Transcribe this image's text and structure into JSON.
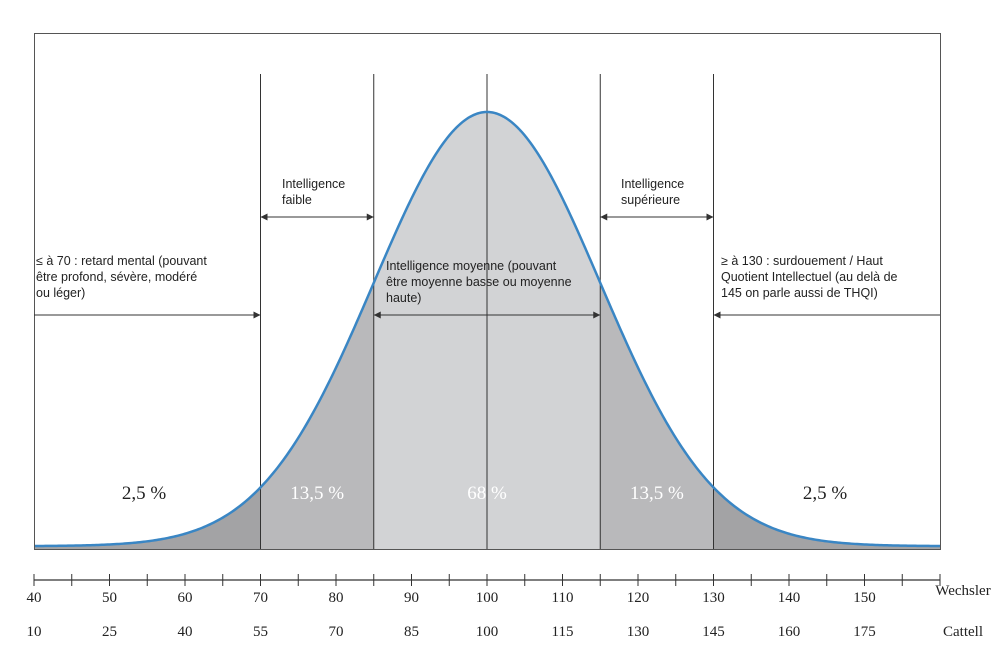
{
  "chart_data": {
    "type": "area",
    "title": "",
    "distribution": "normal",
    "mean": 100,
    "sd": 15,
    "x_range": [
      40,
      160
    ],
    "scales": [
      {
        "name": "Wechsler",
        "ticks": [
          "40",
          "50",
          "60",
          "70",
          "80",
          "90",
          "100",
          "110",
          "120",
          "130",
          "140",
          "150"
        ]
      },
      {
        "name": "Cattell",
        "ticks": [
          "10",
          "25",
          "40",
          "55",
          "70",
          "85",
          "100",
          "115",
          "130",
          "145",
          "160",
          "175"
        ]
      }
    ],
    "region_boundaries": [
      70,
      85,
      100,
      115,
      130
    ],
    "regions": [
      {
        "from": 40,
        "to": 70,
        "percent": "2,5 %",
        "fill": "#a3a3a5"
      },
      {
        "from": 70,
        "to": 85,
        "percent": "13,5 %",
        "fill": "#b9b9bb"
      },
      {
        "from": 85,
        "to": 115,
        "percent": "68 %",
        "fill": "#d2d3d5"
      },
      {
        "from": 115,
        "to": 130,
        "percent": "13,5 %",
        "fill": "#b9b9bb"
      },
      {
        "from": 130,
        "to": 160,
        "percent": "2,5 %",
        "fill": "#a3a3a5"
      }
    ],
    "annotations": [
      {
        "id": "low",
        "from": 40,
        "to": 70,
        "lines": [
          "≤ à 70 : retard mental (pouvant",
          "être profond, sévère, modéré",
          "ou léger)"
        ]
      },
      {
        "id": "weak",
        "from": 70,
        "to": 85,
        "lines": [
          "Intelligence",
          "faible"
        ]
      },
      {
        "id": "avg",
        "from": 85,
        "to": 115,
        "lines": [
          "Intelligence moyenne (pouvant",
          "être moyenne basse ou moyenne",
          "haute)"
        ]
      },
      {
        "id": "sup",
        "from": 115,
        "to": 130,
        "lines": [
          "Intelligence",
          "supérieure"
        ]
      },
      {
        "id": "gifted",
        "from": 130,
        "to": 160,
        "lines": [
          "≥ à 130 : surdouement / Haut",
          "Quotient Intellectuel (au delà de",
          "145 on parle aussi de THQI)"
        ]
      }
    ],
    "colors": {
      "curve": "#3a86c4",
      "lines": "#333333",
      "text": "#222222",
      "percent_light": "#ffffff",
      "percent_dark": "#222222"
    }
  }
}
